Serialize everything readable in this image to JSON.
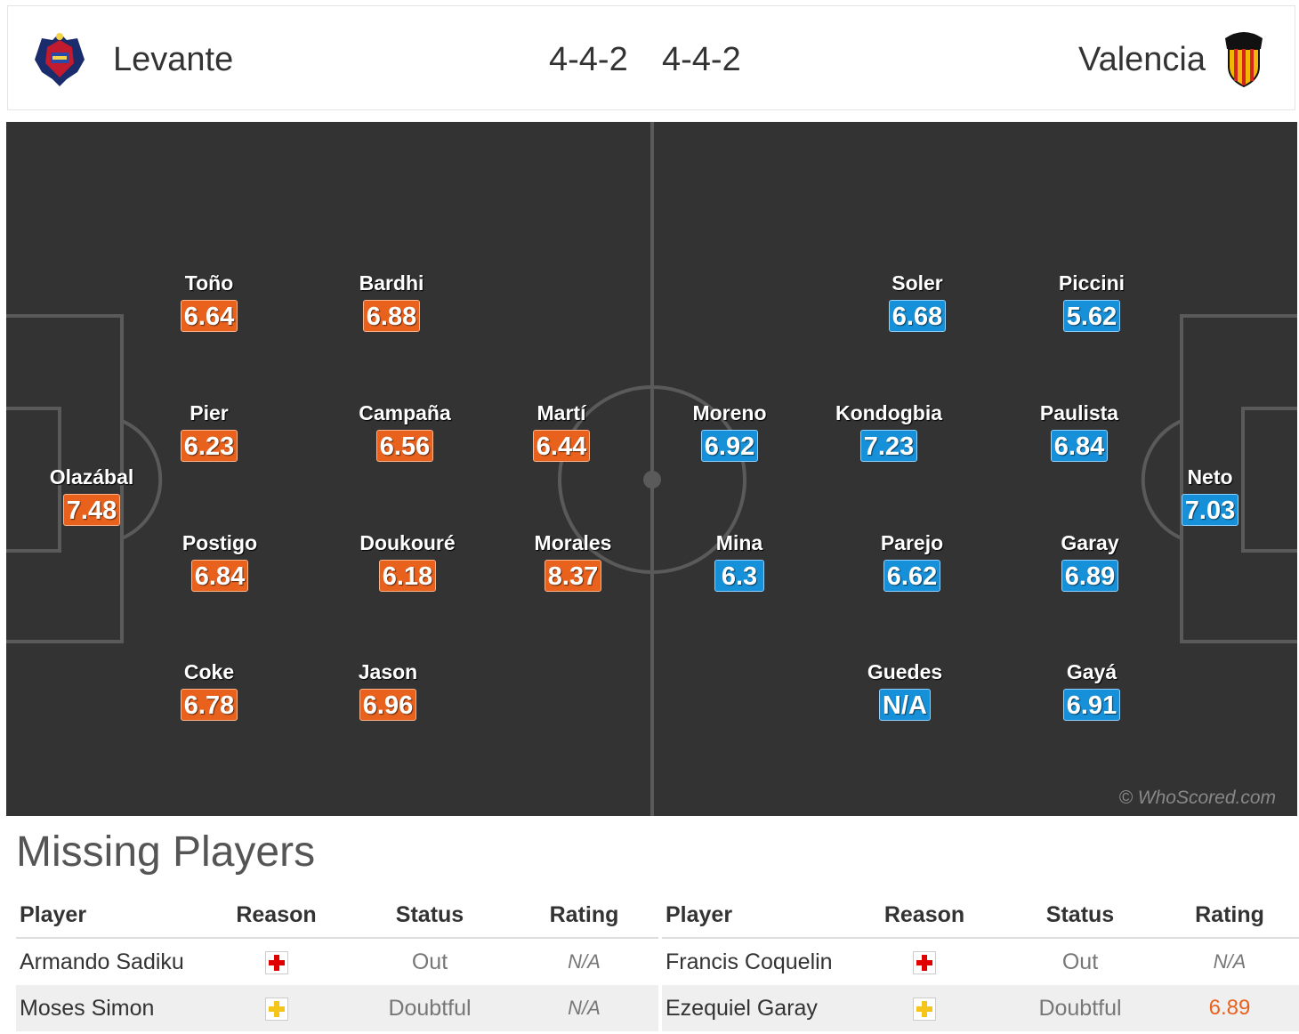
{
  "header": {
    "home_team": "Levante",
    "home_formation": "4-4-2",
    "away_team": "Valencia",
    "away_formation": "4-4-2"
  },
  "colors": {
    "home_rating": "#e8611d",
    "away_rating": "#1690d9",
    "pitch": "#333333",
    "injury_icon": "#e00000",
    "doubt_icon": "#f6c51a"
  },
  "pitch": {
    "home_players": [
      {
        "name": "Olazábal",
        "rating": "7.48"
      },
      {
        "name": "Toño",
        "rating": "6.64"
      },
      {
        "name": "Pier",
        "rating": "6.23"
      },
      {
        "name": "Postigo",
        "rating": "6.84"
      },
      {
        "name": "Coke",
        "rating": "6.78"
      },
      {
        "name": "Bardhi",
        "rating": "6.88"
      },
      {
        "name": "Campaña",
        "rating": "6.56"
      },
      {
        "name": "Doukouré",
        "rating": "6.18"
      },
      {
        "name": "Jason",
        "rating": "6.96"
      },
      {
        "name": "Martí",
        "rating": "6.44"
      },
      {
        "name": "Morales",
        "rating": "8.37"
      }
    ],
    "away_players": [
      {
        "name": "Neto",
        "rating": "7.03"
      },
      {
        "name": "Piccini",
        "rating": "5.62"
      },
      {
        "name": "Paulista",
        "rating": "6.84"
      },
      {
        "name": "Garay",
        "rating": "6.89"
      },
      {
        "name": "Gayá",
        "rating": "6.91"
      },
      {
        "name": "Soler",
        "rating": "6.68"
      },
      {
        "name": "Kondogbia",
        "rating": "7.23"
      },
      {
        "name": "Parejo",
        "rating": "6.62"
      },
      {
        "name": "Guedes",
        "rating": "N/A"
      },
      {
        "name": "Moreno",
        "rating": "6.92"
      },
      {
        "name": "Mina",
        "rating": "6.3"
      }
    ],
    "watermark": "© WhoScored.com"
  },
  "missing": {
    "title": "Missing Players",
    "headers": {
      "player": "Player",
      "reason": "Reason",
      "status": "Status",
      "rating": "Rating"
    },
    "home": [
      {
        "player": "Armando Sadiku",
        "reason": "injury-icon",
        "status": "Out",
        "rating": "N/A"
      },
      {
        "player": "Moses Simon",
        "reason": "doubtful-icon",
        "status": "Doubtful",
        "rating": "N/A"
      }
    ],
    "away": [
      {
        "player": "Francis Coquelin",
        "reason": "injury-icon",
        "status": "Out",
        "rating": "N/A"
      },
      {
        "player": "Ezequiel Garay",
        "reason": "doubtful-icon",
        "status": "Doubtful",
        "rating": "6.89"
      }
    ]
  }
}
